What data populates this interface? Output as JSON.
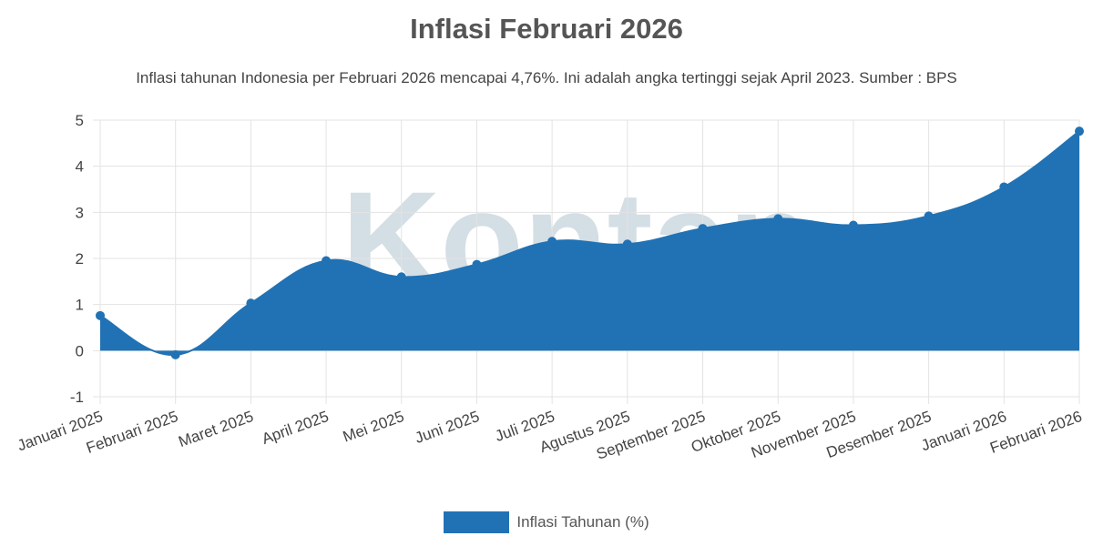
{
  "title": "Inflasi Februari 2026",
  "subtitle": "Inflasi tahunan Indonesia per Februari 2026 mencapai 4,76%. Ini adalah angka tertinggi sejak April 2023. Sumber : BPS",
  "watermark": "Kontan",
  "colors": {
    "series": "#2072b5",
    "grid": "#e3e3e3",
    "axis_text": "#444444",
    "watermark": "#c9d6df"
  },
  "chart_data": {
    "type": "area",
    "title": "Inflasi Februari 2026",
    "categories": [
      "Januari 2025",
      "Februari 2025",
      "Maret 2025",
      "April 2025",
      "Mei 2025",
      "Juni 2025",
      "Juli 2025",
      "Agustus 2025",
      "September 2025",
      "Oktober 2025",
      "November 2025",
      "Desember 2025",
      "Januari 2026",
      "Februari 2026"
    ],
    "series": [
      {
        "name": "Inflasi Tahunan (%)",
        "values": [
          0.76,
          -0.09,
          1.03,
          1.95,
          1.6,
          1.87,
          2.37,
          2.31,
          2.65,
          2.86,
          2.72,
          2.92,
          3.55,
          4.76
        ]
      }
    ],
    "ylim": [
      -1,
      5
    ],
    "yticks": [
      5,
      4,
      3,
      2,
      1,
      0,
      -1
    ],
    "grid": true,
    "legend": "bottom-center"
  }
}
